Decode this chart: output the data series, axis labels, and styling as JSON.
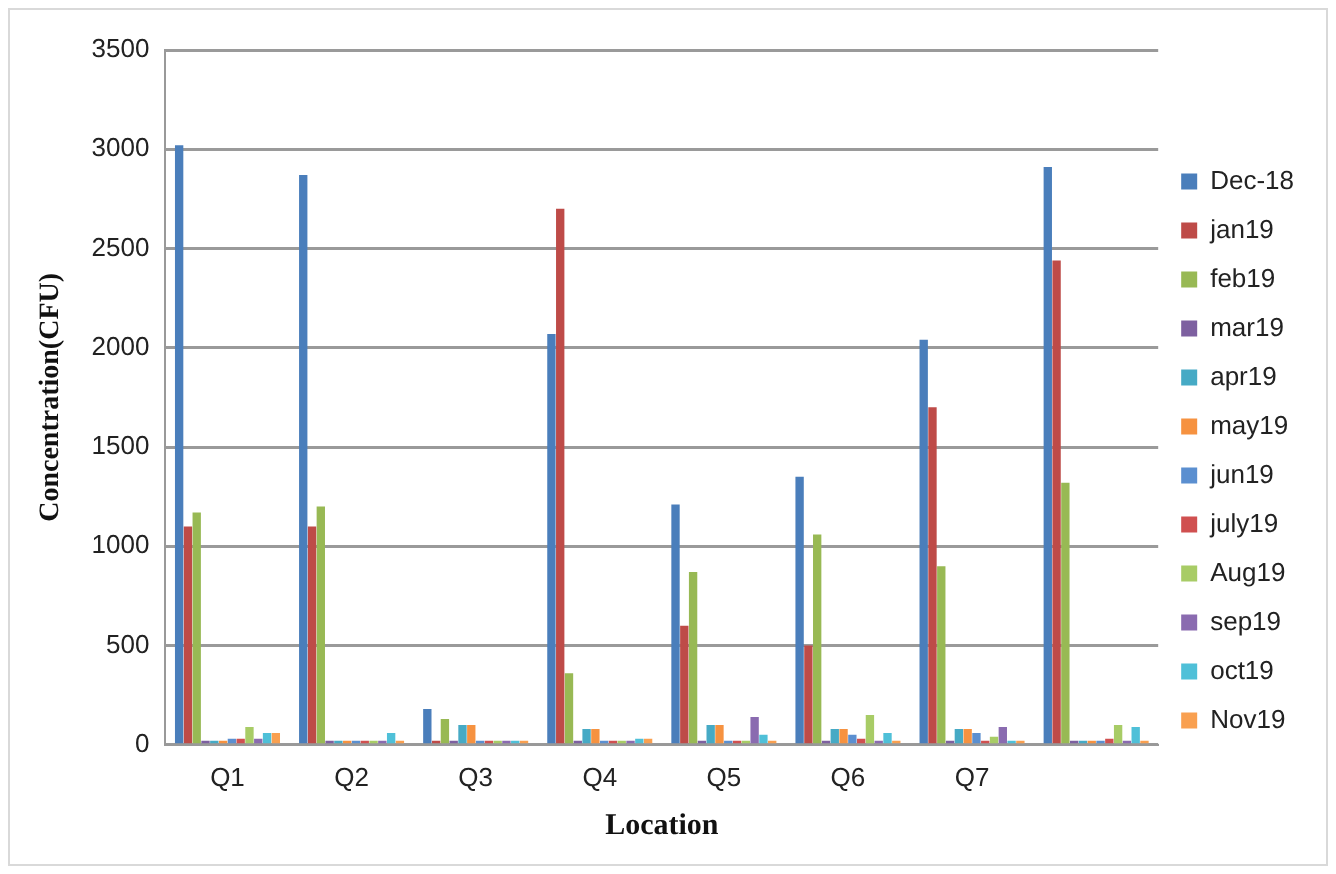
{
  "chart_data": {
    "type": "bar",
    "xlabel": "Location",
    "ylabel": "Concentration(CFU)",
    "categories": [
      "Q1",
      "Q2",
      "Q3",
      "Q4",
      "Q5",
      "Q6",
      "Q7",
      null
    ],
    "ylim": [
      0,
      3500
    ],
    "yticks": [
      0,
      500,
      1000,
      1500,
      2000,
      2500,
      3000,
      3500
    ],
    "grid": "y",
    "legend": "right",
    "series": [
      {
        "name": "Dec-18",
        "color": "#4a7ebb",
        "values": [
          3020,
          2870,
          180,
          2070,
          1210,
          1350,
          2040,
          2910
        ]
      },
      {
        "name": "jan19",
        "color": "#be4b48",
        "values": [
          1100,
          1100,
          20,
          2700,
          600,
          500,
          1700,
          2440
        ]
      },
      {
        "name": "feb19",
        "color": "#98b954",
        "values": [
          1170,
          1200,
          130,
          360,
          870,
          1060,
          900,
          1320
        ]
      },
      {
        "name": "mar19",
        "color": "#7d60a0",
        "values": [
          20,
          20,
          20,
          20,
          20,
          20,
          20,
          20
        ]
      },
      {
        "name": "apr19",
        "color": "#46aac5",
        "values": [
          20,
          20,
          100,
          80,
          100,
          80,
          80,
          20
        ]
      },
      {
        "name": "may19",
        "color": "#f69240",
        "values": [
          20,
          20,
          100,
          80,
          100,
          80,
          80,
          20
        ]
      },
      {
        "name": "jun19",
        "color": "#5b8fd0",
        "values": [
          30,
          20,
          20,
          20,
          20,
          50,
          60,
          20
        ]
      },
      {
        "name": "july19",
        "color": "#d05050",
        "values": [
          30,
          20,
          20,
          20,
          20,
          30,
          20,
          30
        ]
      },
      {
        "name": "Aug19",
        "color": "#a8cc66",
        "values": [
          90,
          20,
          20,
          20,
          20,
          150,
          40,
          100
        ]
      },
      {
        "name": "sep19",
        "color": "#8a6bb0",
        "values": [
          30,
          20,
          20,
          20,
          140,
          20,
          90,
          20
        ]
      },
      {
        "name": "oct19",
        "color": "#4fc0d8",
        "values": [
          60,
          60,
          20,
          30,
          50,
          60,
          20,
          90
        ]
      },
      {
        "name": "Nov19",
        "color": "#f9a050",
        "values": [
          60,
          20,
          20,
          30,
          20,
          20,
          20,
          20
        ]
      }
    ]
  }
}
